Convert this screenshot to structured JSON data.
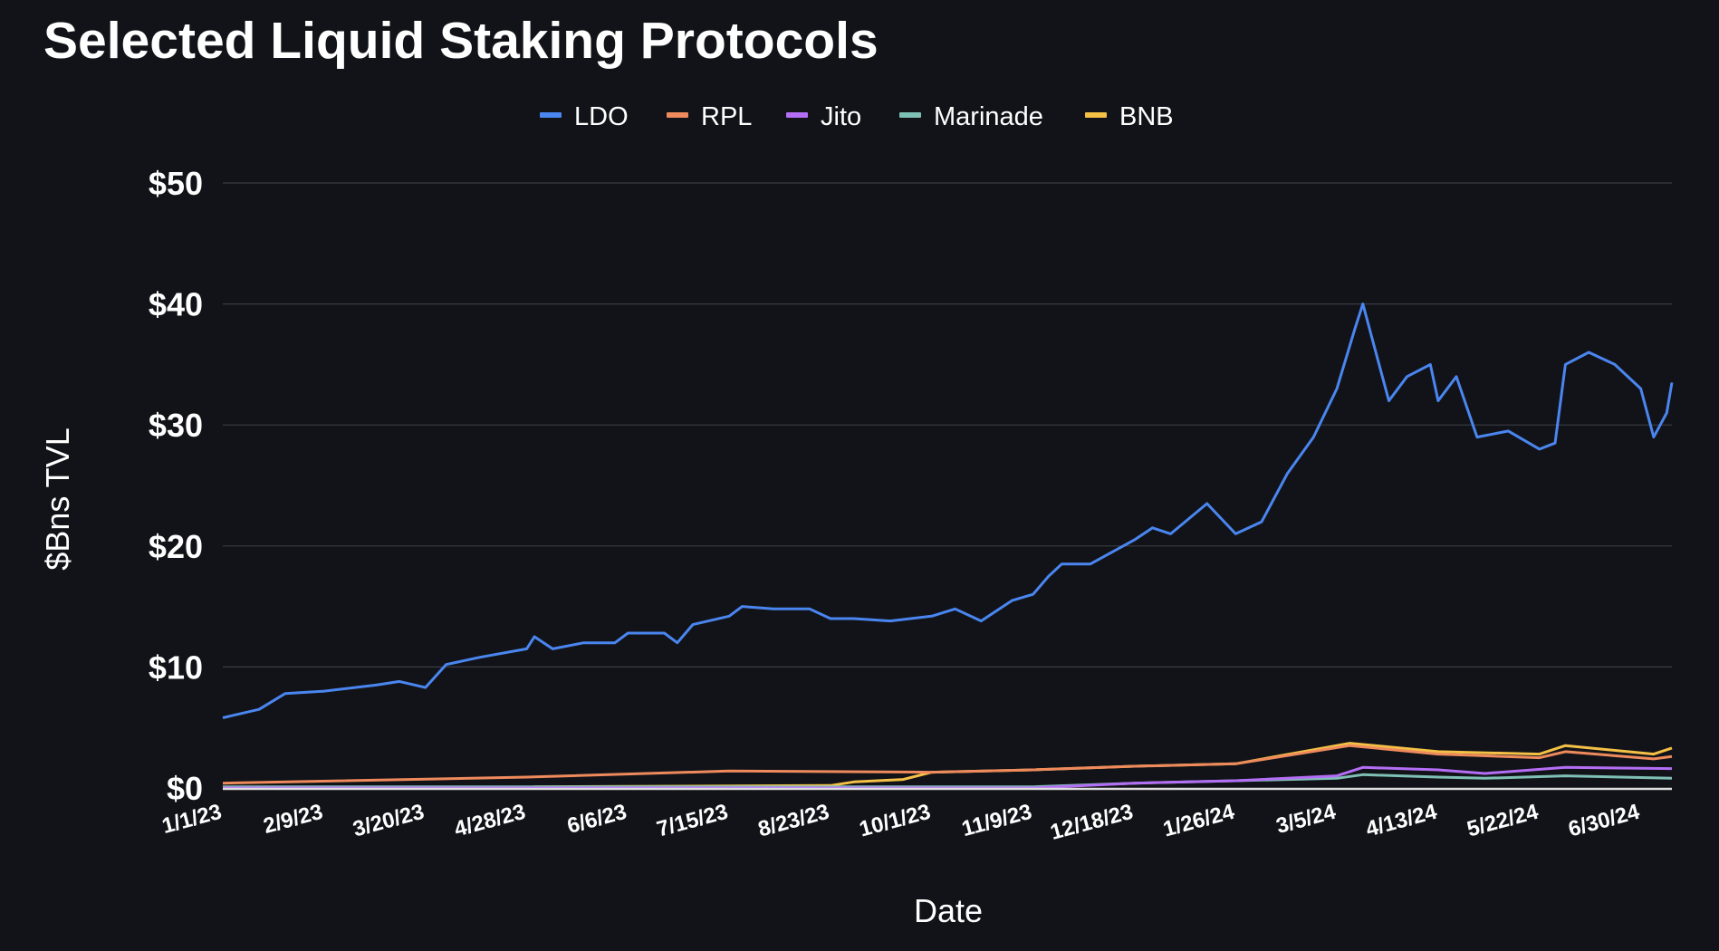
{
  "chart_data": {
    "type": "line",
    "title": "Selected Liquid Staking Protocols",
    "xlabel": "Date",
    "ylabel": "$Bns TVL",
    "ylim": [
      0,
      50
    ],
    "yticks": [
      0,
      10,
      20,
      30,
      40,
      50
    ],
    "ytick_labels": [
      "$0",
      "$10",
      "$20",
      "$30",
      "$40",
      "$50"
    ],
    "xlim": [
      "2023-01-01",
      "2024-07-12"
    ],
    "xticks": [
      "2023-01-01",
      "2023-02-09",
      "2023-03-20",
      "2023-04-28",
      "2023-06-06",
      "2023-07-15",
      "2023-08-23",
      "2023-10-01",
      "2023-11-09",
      "2023-12-18",
      "2024-01-26",
      "2024-03-05",
      "2024-04-13",
      "2024-05-22",
      "2024-06-30"
    ],
    "xtick_labels": [
      "1/1/23",
      "2/9/23",
      "3/20/23",
      "4/28/23",
      "6/6/23",
      "7/15/23",
      "8/23/23",
      "10/1/23",
      "11/9/23",
      "12/18/23",
      "1/26/24",
      "3/5/24",
      "4/13/24",
      "5/22/24",
      "6/30/24"
    ],
    "grid": "horizontal",
    "legend_placement": "top-center",
    "background": "#121318",
    "series": [
      {
        "name": "LDO",
        "color": "#4a86f0",
        "points": [
          [
            "2023-01-01",
            5.8
          ],
          [
            "2023-01-15",
            6.5
          ],
          [
            "2023-01-25",
            7.8
          ],
          [
            "2023-02-09",
            8.0
          ],
          [
            "2023-03-01",
            8.5
          ],
          [
            "2023-03-10",
            8.8
          ],
          [
            "2023-03-20",
            8.3
          ],
          [
            "2023-03-28",
            10.2
          ],
          [
            "2023-04-10",
            10.8
          ],
          [
            "2023-04-28",
            11.5
          ],
          [
            "2023-05-01",
            12.5
          ],
          [
            "2023-05-08",
            11.5
          ],
          [
            "2023-05-20",
            12.0
          ],
          [
            "2023-06-01",
            12.0
          ],
          [
            "2023-06-06",
            12.8
          ],
          [
            "2023-06-20",
            12.8
          ],
          [
            "2023-06-25",
            12.0
          ],
          [
            "2023-07-01",
            13.5
          ],
          [
            "2023-07-15",
            14.2
          ],
          [
            "2023-07-20",
            15.0
          ],
          [
            "2023-08-01",
            14.8
          ],
          [
            "2023-08-15",
            14.8
          ],
          [
            "2023-08-23",
            14.0
          ],
          [
            "2023-09-01",
            14.0
          ],
          [
            "2023-09-15",
            13.8
          ],
          [
            "2023-10-01",
            14.2
          ],
          [
            "2023-10-10",
            14.8
          ],
          [
            "2023-10-20",
            13.8
          ],
          [
            "2023-11-01",
            15.5
          ],
          [
            "2023-11-09",
            16.0
          ],
          [
            "2023-11-15",
            17.5
          ],
          [
            "2023-11-20",
            18.5
          ],
          [
            "2023-12-01",
            18.5
          ],
          [
            "2023-12-18",
            20.5
          ],
          [
            "2023-12-25",
            21.5
          ],
          [
            "2024-01-01",
            21.0
          ],
          [
            "2024-01-15",
            23.5
          ],
          [
            "2024-01-26",
            21.0
          ],
          [
            "2024-02-05",
            22.0
          ],
          [
            "2024-02-15",
            26.0
          ],
          [
            "2024-02-25",
            29.0
          ],
          [
            "2024-03-05",
            33.0
          ],
          [
            "2024-03-12",
            38.0
          ],
          [
            "2024-03-15",
            40.0
          ],
          [
            "2024-03-20",
            36.0
          ],
          [
            "2024-03-25",
            32.0
          ],
          [
            "2024-04-01",
            34.0
          ],
          [
            "2024-04-10",
            35.0
          ],
          [
            "2024-04-13",
            32.0
          ],
          [
            "2024-04-20",
            34.0
          ],
          [
            "2024-04-28",
            29.0
          ],
          [
            "2024-05-10",
            29.5
          ],
          [
            "2024-05-22",
            28.0
          ],
          [
            "2024-05-28",
            28.5
          ],
          [
            "2024-06-01",
            35.0
          ],
          [
            "2024-06-10",
            36.0
          ],
          [
            "2024-06-20",
            35.0
          ],
          [
            "2024-06-30",
            33.0
          ],
          [
            "2024-07-05",
            29.0
          ],
          [
            "2024-07-10",
            31.0
          ],
          [
            "2024-07-12",
            33.5
          ]
        ]
      },
      {
        "name": "RPL",
        "color": "#ef8a5d",
        "points": [
          [
            "2023-01-01",
            0.4
          ],
          [
            "2023-04-28",
            0.9
          ],
          [
            "2023-07-15",
            1.4
          ],
          [
            "2023-10-01",
            1.3
          ],
          [
            "2023-11-09",
            1.5
          ],
          [
            "2023-12-18",
            1.8
          ],
          [
            "2024-01-26",
            2.0
          ],
          [
            "2024-03-10",
            3.5
          ],
          [
            "2024-04-13",
            2.8
          ],
          [
            "2024-05-22",
            2.5
          ],
          [
            "2024-06-01",
            3.0
          ],
          [
            "2024-07-05",
            2.4
          ],
          [
            "2024-07-12",
            2.6
          ]
        ]
      },
      {
        "name": "Jito",
        "color": "#b46ef6",
        "points": [
          [
            "2023-01-01",
            0.0
          ],
          [
            "2023-11-09",
            0.0
          ],
          [
            "2023-12-18",
            0.4
          ],
          [
            "2024-01-26",
            0.6
          ],
          [
            "2024-03-05",
            1.0
          ],
          [
            "2024-03-15",
            1.7
          ],
          [
            "2024-04-13",
            1.5
          ],
          [
            "2024-05-01",
            1.2
          ],
          [
            "2024-06-01",
            1.7
          ],
          [
            "2024-07-12",
            1.6
          ]
        ]
      },
      {
        "name": "Marinade",
        "color": "#7fc0b6",
        "points": [
          [
            "2023-01-01",
            0.1
          ],
          [
            "2023-11-09",
            0.1
          ],
          [
            "2023-12-18",
            0.4
          ],
          [
            "2024-01-26",
            0.6
          ],
          [
            "2024-03-05",
            0.8
          ],
          [
            "2024-03-15",
            1.1
          ],
          [
            "2024-04-13",
            0.9
          ],
          [
            "2024-05-01",
            0.8
          ],
          [
            "2024-06-01",
            1.0
          ],
          [
            "2024-07-12",
            0.8
          ]
        ]
      },
      {
        "name": "BNB",
        "color": "#f4c046",
        "points": [
          [
            "2023-01-01",
            0.0
          ],
          [
            "2023-04-28",
            0.0
          ],
          [
            "2023-05-01",
            0.1
          ],
          [
            "2023-08-23",
            0.2
          ],
          [
            "2023-09-01",
            0.5
          ],
          [
            "2023-09-20",
            0.7
          ],
          [
            "2023-10-01",
            1.3
          ],
          [
            "2023-11-09",
            1.5
          ],
          [
            "2023-12-18",
            1.8
          ],
          [
            "2024-01-26",
            2.0
          ],
          [
            "2024-03-10",
            3.7
          ],
          [
            "2024-04-13",
            3.0
          ],
          [
            "2024-05-22",
            2.8
          ],
          [
            "2024-06-01",
            3.5
          ],
          [
            "2024-07-05",
            2.8
          ],
          [
            "2024-07-12",
            3.3
          ]
        ]
      }
    ]
  }
}
